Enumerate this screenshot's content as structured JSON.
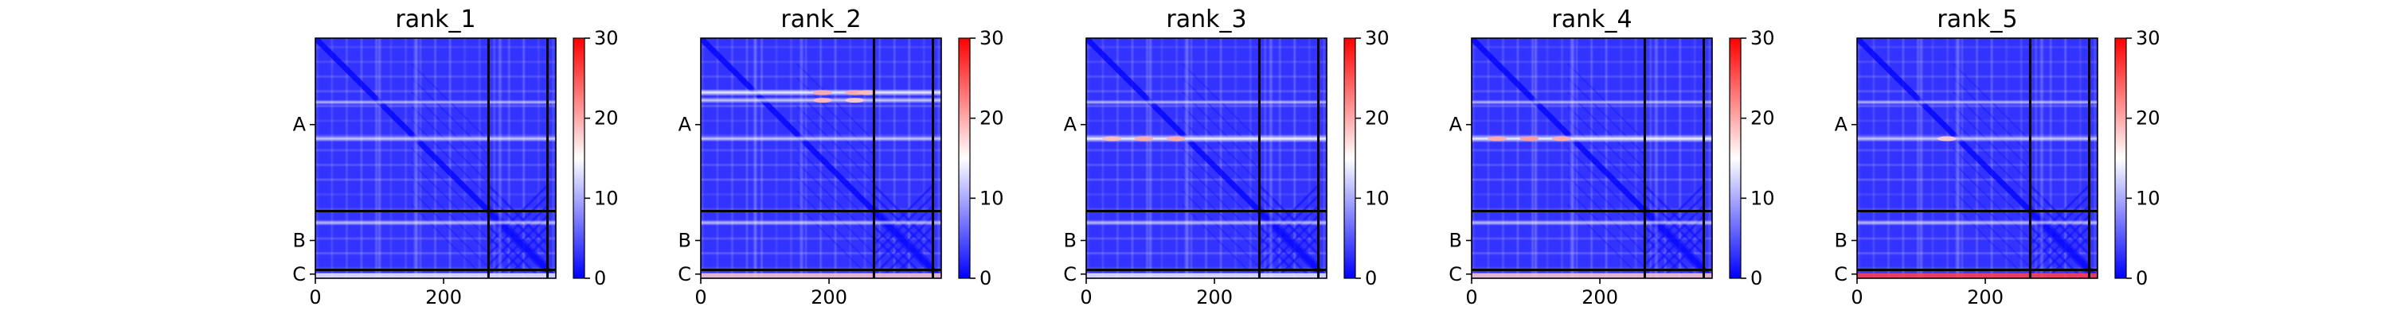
{
  "chart_data": [
    {
      "type": "heatmap",
      "title": "rank_1",
      "xticks": [
        0,
        200
      ],
      "yticks": [
        "A",
        "B",
        "C"
      ],
      "n_residues": 375,
      "chain_breaks": [
        270,
        362
      ],
      "chain_ranges": [
        [
          0,
          270
        ],
        [
          270,
          362
        ],
        [
          362,
          375
        ]
      ],
      "colorbar": {
        "min": 0,
        "max": 30,
        "ticks": [
          0,
          10,
          20,
          30
        ],
        "colors": [
          "#0000ff",
          "#ffffff",
          "#ff0000"
        ]
      },
      "hot_rows": [
        [
          100,
          230,
          0.3
        ],
        [
          157,
          300,
          0.4
        ],
        [
          288,
          260,
          0.3
        ]
      ],
      "hot_cols": [
        [
          100,
          230,
          0.25
        ],
        [
          157,
          280,
          0.3
        ],
        [
          288,
          240,
          0.25
        ]
      ],
      "hotspots": [],
      "bottom_edge": 14
    },
    {
      "type": "heatmap",
      "title": "rank_2",
      "xticks": [
        0,
        200
      ],
      "yticks": [
        "A",
        "B",
        "C"
      ],
      "n_residues": 375,
      "chain_breaks": [
        270,
        362
      ],
      "chain_ranges": [
        [
          0,
          270
        ],
        [
          270,
          362
        ],
        [
          362,
          375
        ]
      ],
      "colorbar": {
        "min": 0,
        "max": 30,
        "ticks": [
          0,
          10,
          20,
          30
        ],
        "colors": [
          "#0000ff",
          "#ffffff",
          "#ff0000"
        ]
      },
      "hot_rows": [
        [
          85,
          330,
          0.55
        ],
        [
          97,
          300,
          0.4
        ],
        [
          157,
          280,
          0.4
        ],
        [
          288,
          260,
          0.3
        ]
      ],
      "hot_cols": [
        [
          85,
          240,
          0.3
        ],
        [
          157,
          240,
          0.25
        ]
      ],
      "hotspots": [
        [
          85,
          190,
          20
        ],
        [
          85,
          240,
          20
        ],
        [
          85,
          260,
          19
        ],
        [
          97,
          190,
          19
        ],
        [
          97,
          240,
          18
        ]
      ],
      "bottom_edge": 18
    },
    {
      "type": "heatmap",
      "title": "rank_3",
      "xticks": [
        0,
        200
      ],
      "yticks": [
        "A",
        "B",
        "C"
      ],
      "n_residues": 375,
      "chain_breaks": [
        270,
        362
      ],
      "chain_ranges": [
        [
          0,
          270
        ],
        [
          270,
          362
        ],
        [
          362,
          375
        ]
      ],
      "colorbar": {
        "min": 0,
        "max": 30,
        "ticks": [
          0,
          10,
          20,
          30
        ],
        "colors": [
          "#0000ff",
          "#ffffff",
          "#ff0000"
        ]
      },
      "hot_rows": [
        [
          100,
          230,
          0.3
        ],
        [
          157,
          360,
          0.6
        ],
        [
          288,
          260,
          0.3
        ]
      ],
      "hot_cols": [
        [
          100,
          230,
          0.25
        ],
        [
          157,
          280,
          0.3
        ],
        [
          288,
          240,
          0.25
        ]
      ],
      "hotspots": [
        [
          157,
          40,
          19
        ],
        [
          157,
          90,
          20
        ],
        [
          157,
          140,
          20
        ]
      ],
      "bottom_edge": 14
    },
    {
      "type": "heatmap",
      "title": "rank_4",
      "xticks": [
        0,
        200
      ],
      "yticks": [
        "A",
        "B",
        "C"
      ],
      "n_residues": 375,
      "chain_breaks": [
        270,
        362
      ],
      "chain_ranges": [
        [
          0,
          270
        ],
        [
          270,
          362
        ],
        [
          362,
          375
        ]
      ],
      "colorbar": {
        "min": 0,
        "max": 30,
        "ticks": [
          0,
          10,
          20,
          30
        ],
        "colors": [
          "#0000ff",
          "#ffffff",
          "#ff0000"
        ]
      },
      "hot_rows": [
        [
          100,
          230,
          0.3
        ],
        [
          157,
          360,
          0.6
        ],
        [
          288,
          260,
          0.3
        ]
      ],
      "hot_cols": [
        [
          100,
          230,
          0.25
        ],
        [
          157,
          280,
          0.3
        ],
        [
          288,
          240,
          0.25
        ]
      ],
      "hotspots": [
        [
          157,
          40,
          20
        ],
        [
          157,
          90,
          21
        ],
        [
          157,
          140,
          20
        ]
      ],
      "bottom_edge": 18
    },
    {
      "type": "heatmap",
      "title": "rank_5",
      "xticks": [
        0,
        200
      ],
      "yticks": [
        "A",
        "B",
        "C"
      ],
      "n_residues": 375,
      "chain_breaks": [
        270,
        362
      ],
      "chain_ranges": [
        [
          0,
          270
        ],
        [
          270,
          362
        ],
        [
          362,
          375
        ]
      ],
      "colorbar": {
        "min": 0,
        "max": 30,
        "ticks": [
          0,
          10,
          20,
          30
        ],
        "colors": [
          "#0000ff",
          "#ffffff",
          "#ff0000"
        ]
      },
      "hot_rows": [
        [
          100,
          230,
          0.3
        ],
        [
          157,
          300,
          0.4
        ],
        [
          288,
          260,
          0.3
        ]
      ],
      "hot_cols": [
        [
          100,
          230,
          0.25
        ],
        [
          157,
          280,
          0.3
        ],
        [
          288,
          240,
          0.25
        ]
      ],
      "hotspots": [
        [
          157,
          140,
          18
        ]
      ],
      "bottom_edge": 26
    }
  ]
}
